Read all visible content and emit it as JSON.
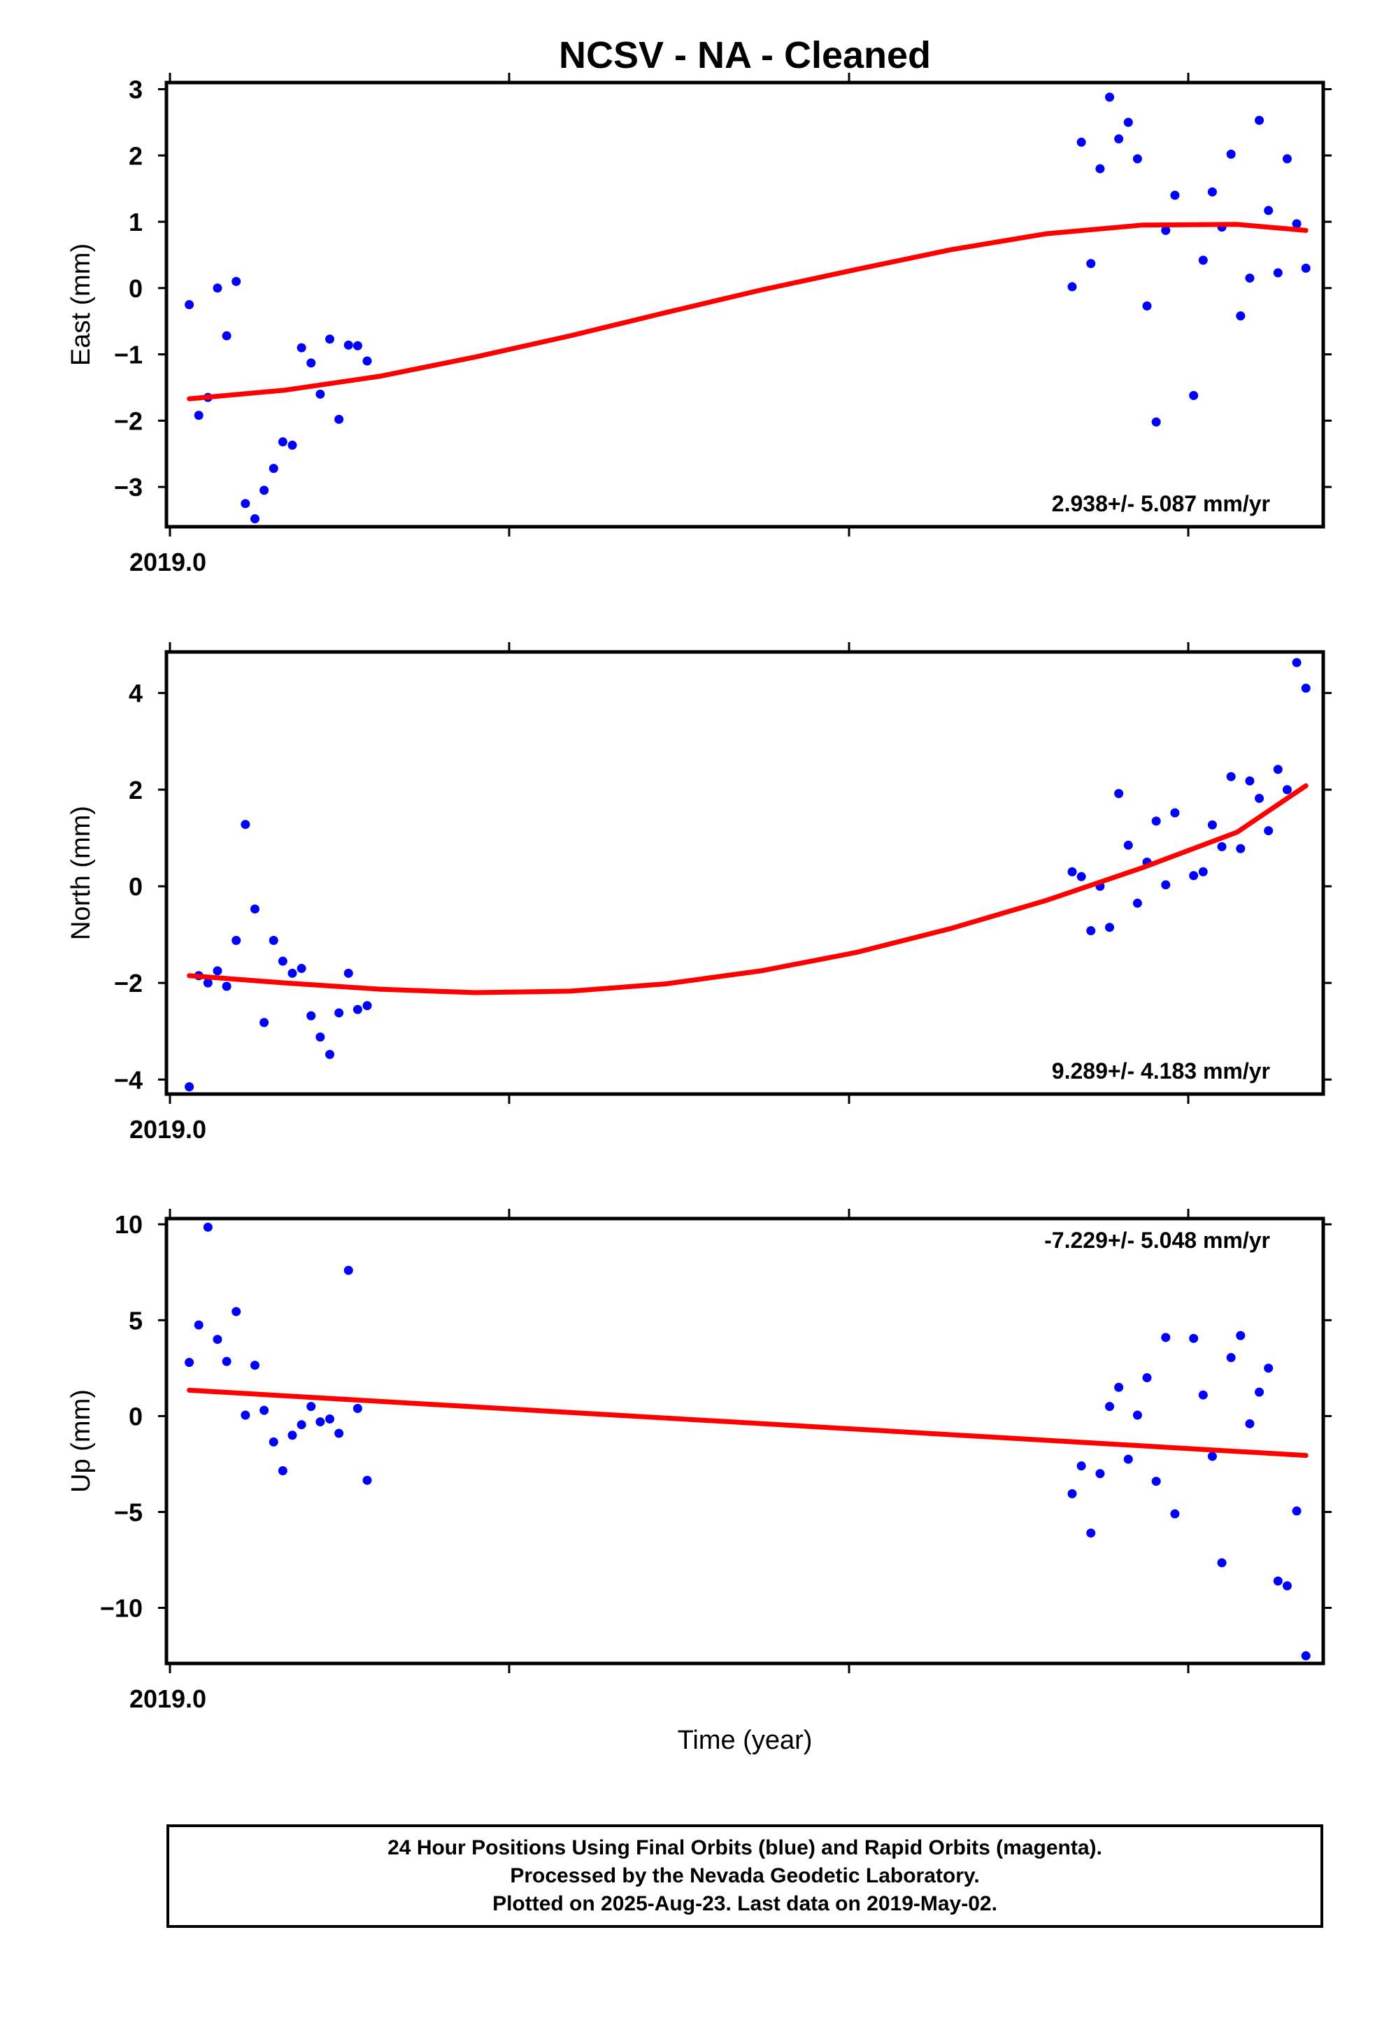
{
  "title": "NCSV  - NA - Cleaned",
  "xlabel": "Time (year)",
  "footer": {
    "line1": "24 Hour Positions Using Final Orbits (blue) and Rapid Orbits (magenta).",
    "line2": "Processed by the Nevada Geodetic Laboratory.",
    "line3": "Plotted on 2025-Aug-23. Last data on 2019-May-02."
  },
  "colors": {
    "points": "#0000ff",
    "trend": "#ff0000",
    "frame": "#000000"
  },
  "chart_data": [
    {
      "type": "scatter",
      "ylabel": "East (mm)",
      "rate_label": "2.938+/- 5.087 mm/yr",
      "rate_position": "bottom-right",
      "x_tick_label": "2019.0",
      "xlim": [
        2018.995,
        2019.335
      ],
      "ylim": [
        -3.6,
        3.1
      ],
      "yticks": [
        -3,
        -2,
        -1,
        0,
        1,
        2,
        3
      ],
      "ytick_labels": [
        "−3",
        "−2",
        "−1",
        "0",
        "1",
        "2",
        "3"
      ],
      "points": [
        [
          2019.0017,
          -0.25
        ],
        [
          2019.0045,
          -1.92
        ],
        [
          2019.0072,
          -1.65
        ],
        [
          2019.01,
          0.0
        ],
        [
          2019.0127,
          -0.72
        ],
        [
          2019.0155,
          0.1
        ],
        [
          2019.0182,
          -3.25
        ],
        [
          2019.021,
          -3.48
        ],
        [
          2019.0237,
          -3.05
        ],
        [
          2019.0265,
          -2.72
        ],
        [
          2019.0292,
          -2.32
        ],
        [
          2019.032,
          -2.37
        ],
        [
          2019.0347,
          -0.9
        ],
        [
          2019.0375,
          -1.13
        ],
        [
          2019.0402,
          -1.6
        ],
        [
          2019.043,
          -0.77
        ],
        [
          2019.0457,
          -1.98
        ],
        [
          2019.0485,
          -0.86
        ],
        [
          2019.0512,
          -0.87
        ],
        [
          2019.054,
          -1.1
        ],
        [
          2019.2612,
          0.02
        ],
        [
          2019.2639,
          2.2
        ],
        [
          2019.2667,
          0.37
        ],
        [
          2019.2694,
          1.8
        ],
        [
          2019.2722,
          2.88
        ],
        [
          2019.2749,
          2.25
        ],
        [
          2019.2777,
          2.5
        ],
        [
          2019.2804,
          1.95
        ],
        [
          2019.2832,
          -0.27
        ],
        [
          2019.2859,
          -2.02
        ],
        [
          2019.2887,
          0.87
        ],
        [
          2019.2914,
          1.4
        ],
        [
          2019.2969,
          -1.62
        ],
        [
          2019.2997,
          0.42
        ],
        [
          2019.3024,
          1.45
        ],
        [
          2019.3052,
          0.92
        ],
        [
          2019.3079,
          2.02
        ],
        [
          2019.3107,
          -0.42
        ],
        [
          2019.3134,
          0.15
        ],
        [
          2019.3162,
          2.53
        ],
        [
          2019.3189,
          1.17
        ],
        [
          2019.3217,
          0.23
        ],
        [
          2019.3244,
          1.95
        ],
        [
          2019.3272,
          0.97
        ],
        [
          2019.3299,
          0.3
        ]
      ],
      "trend": {
        "x": [
          2019.0017,
          2019.0297,
          2019.0577,
          2019.0857,
          2019.1137,
          2019.1417,
          2019.1697,
          2019.1977,
          2019.2257,
          2019.2537,
          2019.2817,
          2019.3097,
          2019.3299
        ],
        "y": [
          -1.67,
          -1.54,
          -1.33,
          -1.04,
          -0.72,
          -0.37,
          -0.03,
          0.28,
          0.58,
          0.82,
          0.95,
          0.96,
          0.87
        ]
      }
    },
    {
      "type": "scatter",
      "ylabel": "North (mm)",
      "rate_label": "9.289+/- 4.183 mm/yr",
      "rate_position": "bottom-right",
      "x_tick_label": "2019.0",
      "xlim": [
        2018.995,
        2019.335
      ],
      "ylim": [
        -4.3,
        4.85
      ],
      "yticks": [
        -4,
        -2,
        0,
        2,
        4
      ],
      "ytick_labels": [
        "−4",
        "−2",
        "0",
        "2",
        "4"
      ],
      "points": [
        [
          2019.0017,
          -4.15
        ],
        [
          2019.0045,
          -1.85
        ],
        [
          2019.0072,
          -2.0
        ],
        [
          2019.01,
          -1.75
        ],
        [
          2019.0127,
          -2.07
        ],
        [
          2019.0155,
          -1.12
        ],
        [
          2019.0182,
          1.28
        ],
        [
          2019.021,
          -0.47
        ],
        [
          2019.0237,
          -2.82
        ],
        [
          2019.0265,
          -1.12
        ],
        [
          2019.0292,
          -1.55
        ],
        [
          2019.032,
          -1.8
        ],
        [
          2019.0347,
          -1.7
        ],
        [
          2019.0375,
          -2.68
        ],
        [
          2019.0402,
          -3.12
        ],
        [
          2019.043,
          -3.48
        ],
        [
          2019.0457,
          -2.62
        ],
        [
          2019.0485,
          -1.8
        ],
        [
          2019.0512,
          -2.55
        ],
        [
          2019.054,
          -2.47
        ],
        [
          2019.2612,
          0.3
        ],
        [
          2019.2639,
          0.2
        ],
        [
          2019.2667,
          -0.92
        ],
        [
          2019.2694,
          0.0
        ],
        [
          2019.2722,
          -0.85
        ],
        [
          2019.2749,
          1.92
        ],
        [
          2019.2777,
          0.85
        ],
        [
          2019.2804,
          -0.35
        ],
        [
          2019.2832,
          0.5
        ],
        [
          2019.2859,
          1.35
        ],
        [
          2019.2887,
          0.03
        ],
        [
          2019.2914,
          1.52
        ],
        [
          2019.2969,
          0.22
        ],
        [
          2019.2997,
          0.3
        ],
        [
          2019.3024,
          1.27
        ],
        [
          2019.3052,
          0.82
        ],
        [
          2019.3079,
          2.27
        ],
        [
          2019.3107,
          0.78
        ],
        [
          2019.3134,
          2.18
        ],
        [
          2019.3162,
          1.82
        ],
        [
          2019.3189,
          1.15
        ],
        [
          2019.3217,
          2.42
        ],
        [
          2019.3244,
          2.0
        ],
        [
          2019.3272,
          4.63
        ],
        [
          2019.3299,
          4.1
        ]
      ],
      "trend": {
        "x": [
          2019.0017,
          2019.0297,
          2019.0577,
          2019.0857,
          2019.1137,
          2019.1417,
          2019.1697,
          2019.1977,
          2019.2257,
          2019.2537,
          2019.2817,
          2019.3097,
          2019.3299
        ],
        "y": [
          -1.85,
          -2.0,
          -2.13,
          -2.2,
          -2.17,
          -2.02,
          -1.75,
          -1.37,
          -0.87,
          -0.29,
          0.38,
          1.12,
          2.08
        ]
      }
    },
    {
      "type": "scatter",
      "ylabel": "Up (mm)",
      "rate_label": "-7.229+/- 5.048 mm/yr",
      "rate_position": "top-right",
      "x_tick_label": "2019.0",
      "xlim": [
        2018.995,
        2019.335
      ],
      "ylim": [
        -12.9,
        10.3
      ],
      "yticks": [
        -10,
        -5,
        0,
        5,
        10
      ],
      "ytick_labels": [
        "−10",
        "−5",
        "0",
        "5",
        "10"
      ],
      "points": [
        [
          2019.0017,
          2.8
        ],
        [
          2019.0045,
          4.75
        ],
        [
          2019.0072,
          9.85
        ],
        [
          2019.01,
          4.0
        ],
        [
          2019.0127,
          2.85
        ],
        [
          2019.0155,
          5.45
        ],
        [
          2019.0182,
          0.05
        ],
        [
          2019.021,
          2.65
        ],
        [
          2019.0237,
          0.3
        ],
        [
          2019.0265,
          -1.35
        ],
        [
          2019.0292,
          -2.85
        ],
        [
          2019.032,
          -1.0
        ],
        [
          2019.0347,
          -0.45
        ],
        [
          2019.0375,
          0.5
        ],
        [
          2019.0402,
          -0.3
        ],
        [
          2019.043,
          -0.15
        ],
        [
          2019.0457,
          -0.9
        ],
        [
          2019.0485,
          7.6
        ],
        [
          2019.0512,
          0.4
        ],
        [
          2019.054,
          -3.35
        ],
        [
          2019.2612,
          -4.05
        ],
        [
          2019.2639,
          -2.6
        ],
        [
          2019.2667,
          -6.1
        ],
        [
          2019.2694,
          -3.0
        ],
        [
          2019.2722,
          0.5
        ],
        [
          2019.2749,
          1.5
        ],
        [
          2019.2777,
          -2.25
        ],
        [
          2019.2804,
          0.05
        ],
        [
          2019.2832,
          2.0
        ],
        [
          2019.2859,
          -3.4
        ],
        [
          2019.2887,
          4.1
        ],
        [
          2019.2914,
          -5.1
        ],
        [
          2019.2969,
          4.05
        ],
        [
          2019.2997,
          1.1
        ],
        [
          2019.3024,
          -2.1
        ],
        [
          2019.3052,
          -7.65
        ],
        [
          2019.3079,
          3.05
        ],
        [
          2019.3107,
          4.2
        ],
        [
          2019.3134,
          -0.4
        ],
        [
          2019.3162,
          1.25
        ],
        [
          2019.3189,
          2.5
        ],
        [
          2019.3217,
          -8.6
        ],
        [
          2019.3244,
          -8.85
        ],
        [
          2019.3272,
          -4.95
        ],
        [
          2019.3299,
          -12.5
        ]
      ],
      "trend": {
        "x": [
          2019.0017,
          2019.3299
        ],
        "y": [
          1.35,
          -2.05
        ]
      }
    }
  ]
}
